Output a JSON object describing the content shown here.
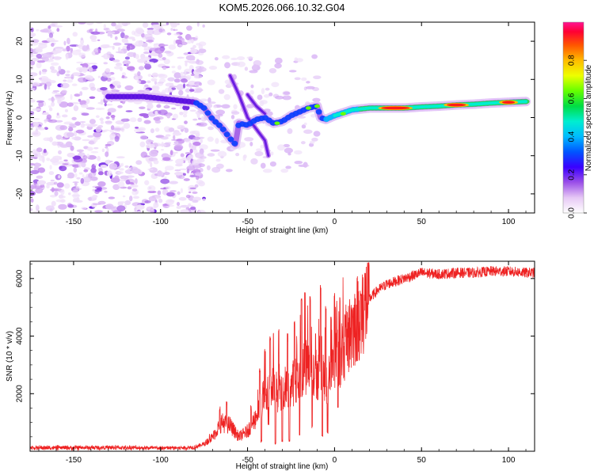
{
  "chart_data": [
    {
      "type": "heatmap",
      "title": "KOM5.2026.066.10.32.G04",
      "xlabel": "Height of straight line (km)",
      "ylabel": "Frequency (Hz)",
      "xlim": [
        -175,
        115
      ],
      "ylim": [
        -25,
        25
      ],
      "xticks": [
        -150,
        -100,
        -50,
        0,
        50,
        100
      ],
      "yticks": [
        -20,
        -10,
        0,
        10,
        20
      ],
      "colorbar": {
        "label": "Normalized spectral amplitude",
        "range": [
          0,
          1
        ],
        "ticks": [
          0.0,
          0.2,
          0.4,
          0.6,
          0.8
        ]
      },
      "main_track": [
        [
          -130,
          5.5
        ],
        [
          -110,
          5.5
        ],
        [
          -100,
          5.0
        ],
        [
          -90,
          4.5
        ],
        [
          -80,
          4.0
        ],
        [
          -75,
          2.5
        ],
        [
          -70,
          -0.5
        ],
        [
          -65,
          -2.5
        ],
        [
          -60,
          -5.5
        ],
        [
          -57,
          -7.0
        ],
        [
          -55,
          -1.5
        ],
        [
          -50,
          -2.0
        ],
        [
          -45,
          -0.5
        ],
        [
          -40,
          0.0
        ],
        [
          -35,
          -1.5
        ],
        [
          -30,
          -1.0
        ],
        [
          -25,
          0.5
        ],
        [
          -20,
          1.5
        ],
        [
          -15,
          2.5
        ],
        [
          -10,
          3.0
        ],
        [
          -8,
          0.0
        ],
        [
          -5,
          -0.5
        ],
        [
          0,
          0.5
        ],
        [
          10,
          2.0
        ],
        [
          20,
          2.5
        ],
        [
          30,
          2.5
        ],
        [
          40,
          2.5
        ],
        [
          50,
          2.8
        ],
        [
          60,
          3.0
        ],
        [
          70,
          3.3
        ],
        [
          80,
          3.5
        ],
        [
          90,
          3.8
        ],
        [
          100,
          4.0
        ],
        [
          110,
          4.2
        ]
      ],
      "branch_tracks": [
        [
          [
            -60,
            11
          ],
          [
            -55,
            6
          ],
          [
            -50,
            0
          ],
          [
            -45,
            -3
          ],
          [
            -40,
            -6
          ],
          [
            -38,
            -10
          ]
        ],
        [
          [
            -50,
            6
          ],
          [
            -45,
            3
          ],
          [
            -40,
            1
          ]
        ]
      ]
    },
    {
      "type": "line",
      "title": "",
      "xlabel": "Height of straight line (km)",
      "ylabel": "SNR (10 * v/v)",
      "xlim": [
        -175,
        115
      ],
      "ylim": [
        0,
        6600
      ],
      "xticks": [
        -150,
        -100,
        -50,
        0,
        50,
        100
      ],
      "yticks": [
        2000,
        4000,
        6000
      ],
      "series": [
        {
          "name": "SNR",
          "color": "#ee2222",
          "x": [
            -175,
            -150,
            -125,
            -100,
            -85,
            -80,
            -75,
            -70,
            -65,
            -60,
            -55,
            -50,
            -45,
            -40,
            -35,
            -30,
            -25,
            -20,
            -15,
            -10,
            -5,
            0,
            5,
            10,
            15,
            20,
            25,
            30,
            40,
            50,
            60,
            70,
            80,
            90,
            100,
            110,
            115
          ],
          "y": [
            120,
            120,
            130,
            110,
            120,
            150,
            250,
            500,
            1000,
            900,
            500,
            700,
            1200,
            2000,
            2200,
            1900,
            2300,
            2600,
            3000,
            2700,
            2400,
            3000,
            3600,
            4200,
            4900,
            5300,
            5600,
            5800,
            6000,
            6200,
            6150,
            6200,
            6200,
            6250,
            6250,
            6200,
            6200
          ],
          "spikes": [
            [
              -72,
              600
            ],
            [
              -66,
              1600
            ],
            [
              -62,
              1800
            ],
            [
              -48,
              1600
            ],
            [
              -43,
              2900
            ],
            [
              -40,
              3600
            ],
            [
              -37,
              4000
            ],
            [
              -35,
              4200
            ],
            [
              -32,
              4300
            ],
            [
              -30,
              4200
            ],
            [
              -27,
              4100
            ],
            [
              -23,
              4600
            ],
            [
              -19,
              5400
            ],
            [
              -17,
              5600
            ],
            [
              -14,
              5400
            ],
            [
              -11,
              4200
            ],
            [
              -8,
              5800
            ],
            [
              -5,
              5100
            ],
            [
              -2,
              4700
            ],
            [
              0,
              5500
            ],
            [
              3,
              5400
            ],
            [
              6,
              4900
            ],
            [
              10,
              5000
            ],
            [
              15,
              5600
            ]
          ],
          "dips": [
            [
              -42,
              300
            ],
            [
              -38,
              900
            ],
            [
              -34,
              200
            ],
            [
              -30,
              300
            ],
            [
              -26,
              300
            ],
            [
              -20,
              500
            ],
            [
              -13,
              800
            ],
            [
              -7,
              450
            ],
            [
              -4,
              600
            ],
            [
              2,
              1500
            ]
          ]
        }
      ]
    }
  ]
}
